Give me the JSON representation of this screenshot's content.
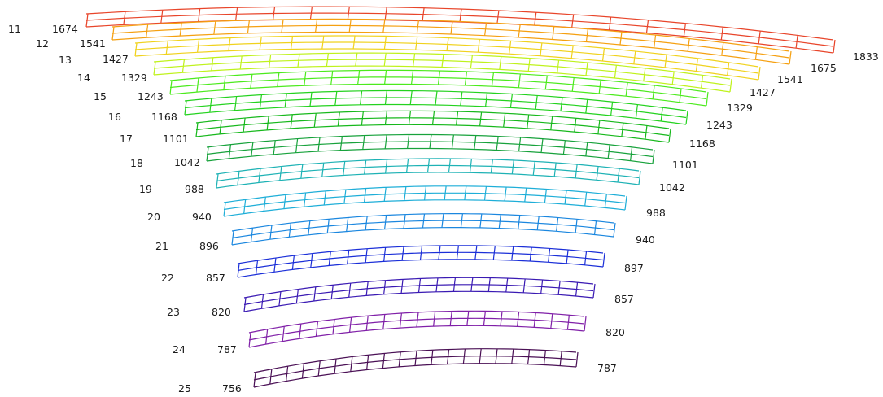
{
  "rows": [
    {
      "index": "11",
      "left_value": "1674",
      "right_value": "1833",
      "color": "#e8452a"
    },
    {
      "index": "12",
      "left_value": "1541",
      "right_value": "1675",
      "color": "#f5a011"
    },
    {
      "index": "13",
      "left_value": "1427",
      "right_value": "1541",
      "color": "#f0d21d"
    },
    {
      "index": "14",
      "left_value": "1329",
      "right_value": "1427",
      "color": "#bff21c"
    },
    {
      "index": "15",
      "left_value": "1243",
      "right_value": "1329",
      "color": "#4cea1d"
    },
    {
      "index": "16",
      "left_value": "1168",
      "right_value": "1243",
      "color": "#24d21f"
    },
    {
      "index": "17",
      "left_value": "1101",
      "right_value": "1168",
      "color": "#17b81c"
    },
    {
      "index": "18",
      "left_value": "1042",
      "right_value": "1101",
      "color": "#18a23c"
    },
    {
      "index": "19",
      "left_value": "988",
      "right_value": "1042",
      "color": "#1eb2b5"
    },
    {
      "index": "20",
      "left_value": "940",
      "right_value": "988",
      "color": "#1eaed8"
    },
    {
      "index": "21",
      "left_value": "896",
      "right_value": "940",
      "color": "#1b87df"
    },
    {
      "index": "22",
      "left_value": "857",
      "right_value": "897",
      "color": "#1b2fd8"
    },
    {
      "index": "23",
      "left_value": "820",
      "right_value": "857",
      "color": "#3a1ab3"
    },
    {
      "index": "24",
      "left_value": "787",
      "right_value": "820",
      "color": "#8020a8"
    },
    {
      "index": "25",
      "left_value": "756",
      "right_value": "787",
      "color": "#4a1055"
    }
  ]
}
